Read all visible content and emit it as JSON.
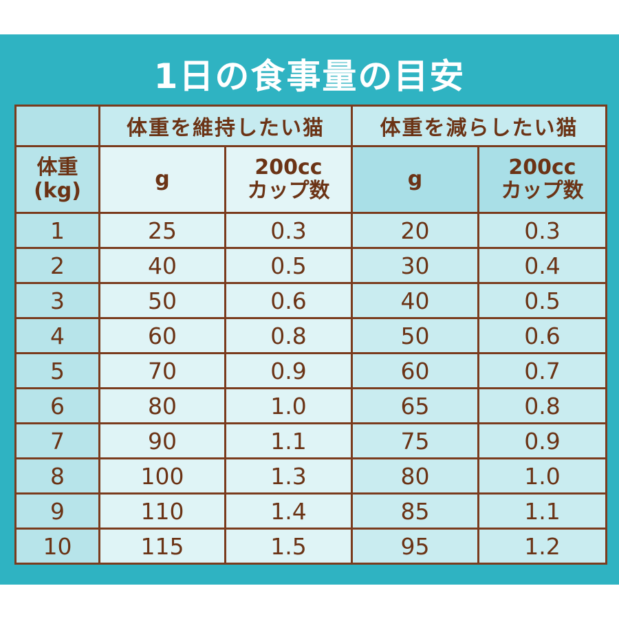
{
  "title": "1日の食事量の目安",
  "groups": {
    "maintain": "体重を維持したい猫",
    "reduce": "体重を減らしたい猫"
  },
  "units": {
    "weight_line1": "体重",
    "weight_line2": "(kg)",
    "grams": "g",
    "cup_line1": "200cc",
    "cup_line2": "カップ数"
  },
  "rows": [
    [
      "1",
      "25",
      "0.3",
      "20",
      "0.3"
    ],
    [
      "2",
      "40",
      "0.5",
      "30",
      "0.4"
    ],
    [
      "3",
      "50",
      "0.6",
      "40",
      "0.5"
    ],
    [
      "4",
      "60",
      "0.8",
      "50",
      "0.6"
    ],
    [
      "5",
      "70",
      "0.9",
      "60",
      "0.7"
    ],
    [
      "6",
      "80",
      "1.0",
      "65",
      "0.8"
    ],
    [
      "7",
      "90",
      "1.1",
      "75",
      "0.9"
    ],
    [
      "8",
      "100",
      "1.3",
      "80",
      "1.0"
    ],
    [
      "9",
      "110",
      "1.4",
      "85",
      "1.1"
    ],
    [
      "10",
      "115",
      "1.5",
      "95",
      "1.2"
    ]
  ]
}
